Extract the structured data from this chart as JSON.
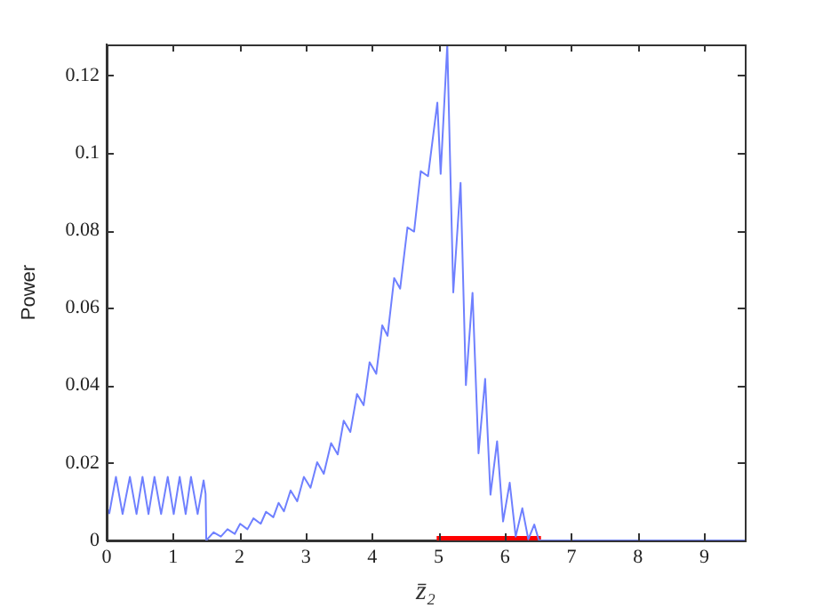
{
  "chart_data": {
    "type": "line",
    "xlabel": "z̄₂",
    "ylabel": "Power",
    "xlim": [
      0,
      9.61
    ],
    "ylim": [
      0,
      0.128
    ],
    "xticks": [
      0,
      1,
      2,
      3,
      4,
      5,
      6,
      7,
      8,
      9
    ],
    "yticks": [
      0,
      0.02,
      0.04,
      0.06,
      0.08,
      0.1,
      0.12
    ],
    "grid": false,
    "legend": false,
    "marker": "none",
    "line_style": "solid",
    "series": [
      {
        "color": "#6f80ff",
        "x": [
          0,
          0.04,
          0.14,
          0.24,
          0.35,
          0.45,
          0.54,
          0.63,
          0.72,
          0.82,
          0.92,
          1.01,
          1.1,
          1.19,
          1.27,
          1.37,
          1.46,
          1.49,
          1.5,
          1.61,
          1.72,
          1.82,
          1.93,
          2.01,
          2.12,
          2.21,
          2.32,
          2.4,
          2.51,
          2.59,
          2.67,
          2.77,
          2.87,
          2.97,
          3.07,
          3.17,
          3.27,
          3.38,
          3.48,
          3.57,
          3.67,
          3.77,
          3.87,
          3.96,
          4.06,
          4.15,
          4.23,
          4.33,
          4.42,
          4.53,
          4.63,
          4.73,
          4.84,
          4.98,
          5.03,
          5.13,
          5.22,
          5.33,
          5.41,
          5.51,
          5.6,
          5.7,
          5.78,
          5.88,
          5.97,
          6.07,
          6.16,
          6.26,
          6.35,
          6.44,
          6.51,
          9.61
        ],
        "values": [
          0.0087,
          0.007,
          0.0164,
          0.0068,
          0.0164,
          0.0068,
          0.0164,
          0.0068,
          0.0164,
          0.0068,
          0.0164,
          0.0068,
          0.0164,
          0.0068,
          0.0164,
          0.0068,
          0.0155,
          0.012,
          0,
          0.0021,
          0.001,
          0.0029,
          0.0017,
          0.0043,
          0.0029,
          0.0057,
          0.0043,
          0.0074,
          0.006,
          0.0097,
          0.0075,
          0.0129,
          0.0101,
          0.0164,
          0.0136,
          0.0202,
          0.0172,
          0.0251,
          0.0222,
          0.0309,
          0.028,
          0.0378,
          0.0349,
          0.046,
          0.043,
          0.0555,
          0.0528,
          0.0677,
          0.065,
          0.0808,
          0.0797,
          0.0953,
          0.094,
          0.113,
          0.0946,
          0.128,
          0.064,
          0.0923,
          0.0401,
          0.0639,
          0.0225,
          0.0417,
          0.0118,
          0.0256,
          0.0049,
          0.0149,
          0.001,
          0.0083,
          0.0003,
          0.0041,
          0,
          0
        ]
      },
      {
        "color": "#ff0000",
        "x": [
          4.97,
          6.54
        ],
        "values": [
          0,
          0
        ]
      }
    ]
  }
}
